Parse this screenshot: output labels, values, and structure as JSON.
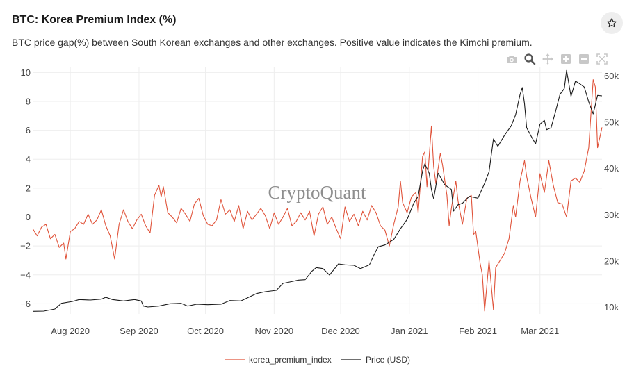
{
  "header": {
    "title": "BTC: Korea Premium Index (%)",
    "subtitle": "BTC price gap(%) between South Korean exchanges and other exchanges. Positive value indicates the Kimchi premium."
  },
  "icons": {
    "favorite": "star-icon",
    "toolbar": [
      "camera-icon",
      "zoom-icon",
      "pan-icon",
      "zoom-in-icon",
      "zoom-out-icon",
      "autoscale-icon"
    ]
  },
  "watermark": "CryptoQuant",
  "colors": {
    "premium": "#e0533a",
    "price": "#1a1a1a",
    "grid": "#eeeeee",
    "zero": "#333333"
  },
  "chart_data": {
    "type": "line",
    "x_range": [
      "2020-07-15",
      "2021-03-29"
    ],
    "x_ticks": [
      {
        "date": "2020-08-01",
        "label": "Aug 2020"
      },
      {
        "date": "2020-09-01",
        "label": "Sep 2020"
      },
      {
        "date": "2020-10-01",
        "label": "Oct 2020"
      },
      {
        "date": "2020-11-01",
        "label": "Nov 2020"
      },
      {
        "date": "2020-12-01",
        "label": "Dec 2020"
      },
      {
        "date": "2021-01-01",
        "label": "Jan 2021"
      },
      {
        "date": "2021-02-01",
        "label": "Feb 2021"
      },
      {
        "date": "2021-03-01",
        "label": "Mar 2021"
      }
    ],
    "y_left": {
      "range": [
        -6.7,
        10.4
      ],
      "ticks": [
        10,
        8,
        6,
        4,
        2,
        0,
        -2,
        -4,
        -6
      ]
    },
    "y_right": {
      "range": [
        8600,
        62000
      ],
      "ticks": [
        {
          "value": 60000,
          "label": "60k"
        },
        {
          "value": 50000,
          "label": "50k"
        },
        {
          "value": 40000,
          "label": "40k"
        },
        {
          "value": 30000,
          "label": "30k"
        },
        {
          "value": 20000,
          "label": "20k"
        },
        {
          "value": 10000,
          "label": "10k"
        }
      ]
    },
    "legend": "bottom-center",
    "grid": true,
    "series": [
      {
        "name": "korea_premium_index",
        "axis": "left",
        "points": [
          [
            "2020-07-15",
            -0.8
          ],
          [
            "2020-07-17",
            -1.3
          ],
          [
            "2020-07-19",
            -0.7
          ],
          [
            "2020-07-21",
            -0.5
          ],
          [
            "2020-07-23",
            -1.5
          ],
          [
            "2020-07-25",
            -1.2
          ],
          [
            "2020-07-27",
            -2.1
          ],
          [
            "2020-07-29",
            -1.8
          ],
          [
            "2020-07-30",
            -2.9
          ],
          [
            "2020-08-01",
            -1.0
          ],
          [
            "2020-08-03",
            -0.8
          ],
          [
            "2020-08-05",
            -0.3
          ],
          [
            "2020-08-07",
            -0.5
          ],
          [
            "2020-08-09",
            0.2
          ],
          [
            "2020-08-11",
            -0.5
          ],
          [
            "2020-08-13",
            -0.2
          ],
          [
            "2020-08-15",
            0.5
          ],
          [
            "2020-08-17",
            -0.6
          ],
          [
            "2020-08-19",
            -1.3
          ],
          [
            "2020-08-21",
            -2.9
          ],
          [
            "2020-08-23",
            -0.5
          ],
          [
            "2020-08-25",
            0.5
          ],
          [
            "2020-08-27",
            -0.3
          ],
          [
            "2020-08-29",
            -0.8
          ],
          [
            "2020-08-31",
            -0.2
          ],
          [
            "2020-09-02",
            0.2
          ],
          [
            "2020-09-04",
            -0.6
          ],
          [
            "2020-09-06",
            -1.1
          ],
          [
            "2020-09-08",
            1.5
          ],
          [
            "2020-09-10",
            2.2
          ],
          [
            "2020-09-11",
            1.4
          ],
          [
            "2020-09-12",
            2.1
          ],
          [
            "2020-09-14",
            0.3
          ],
          [
            "2020-09-16",
            0.0
          ],
          [
            "2020-09-18",
            -0.4
          ],
          [
            "2020-09-20",
            0.6
          ],
          [
            "2020-09-22",
            0.2
          ],
          [
            "2020-09-24",
            -0.3
          ],
          [
            "2020-09-26",
            0.9
          ],
          [
            "2020-09-28",
            1.3
          ],
          [
            "2020-09-30",
            0.1
          ],
          [
            "2020-10-02",
            -0.5
          ],
          [
            "2020-10-04",
            -0.6
          ],
          [
            "2020-10-06",
            -0.2
          ],
          [
            "2020-10-08",
            1.2
          ],
          [
            "2020-10-10",
            0.2
          ],
          [
            "2020-10-12",
            0.5
          ],
          [
            "2020-10-14",
            -0.3
          ],
          [
            "2020-10-16",
            0.8
          ],
          [
            "2020-10-18",
            -0.8
          ],
          [
            "2020-10-20",
            0.4
          ],
          [
            "2020-10-22",
            -0.2
          ],
          [
            "2020-10-24",
            0.2
          ],
          [
            "2020-10-26",
            0.6
          ],
          [
            "2020-10-28",
            0.1
          ],
          [
            "2020-10-30",
            -0.8
          ],
          [
            "2020-11-01",
            0.3
          ],
          [
            "2020-11-03",
            -0.5
          ],
          [
            "2020-11-05",
            0.0
          ],
          [
            "2020-11-07",
            0.6
          ],
          [
            "2020-11-09",
            -0.6
          ],
          [
            "2020-11-11",
            -0.3
          ],
          [
            "2020-11-13",
            0.3
          ],
          [
            "2020-11-15",
            -0.2
          ],
          [
            "2020-11-17",
            0.4
          ],
          [
            "2020-11-19",
            -1.3
          ],
          [
            "2020-11-21",
            0.2
          ],
          [
            "2020-11-23",
            0.7
          ],
          [
            "2020-11-25",
            -0.5
          ],
          [
            "2020-11-27",
            0.0
          ],
          [
            "2020-11-29",
            -0.8
          ],
          [
            "2020-12-01",
            -1.5
          ],
          [
            "2020-12-03",
            0.7
          ],
          [
            "2020-12-05",
            -0.3
          ],
          [
            "2020-12-07",
            0.2
          ],
          [
            "2020-12-09",
            -0.6
          ],
          [
            "2020-12-11",
            0.4
          ],
          [
            "2020-12-13",
            -0.2
          ],
          [
            "2020-12-15",
            0.8
          ],
          [
            "2020-12-17",
            0.3
          ],
          [
            "2020-12-19",
            -0.6
          ],
          [
            "2020-12-21",
            -0.9
          ],
          [
            "2020-12-23",
            -2.0
          ],
          [
            "2020-12-25",
            -0.5
          ],
          [
            "2020-12-27",
            0.7
          ],
          [
            "2020-12-28",
            2.5
          ],
          [
            "2020-12-29",
            1.0
          ],
          [
            "2020-12-31",
            0.3
          ],
          [
            "2021-01-02",
            1.4
          ],
          [
            "2021-01-04",
            1.7
          ],
          [
            "2021-01-05",
            0.3
          ],
          [
            "2021-01-07",
            4.2
          ],
          [
            "2021-01-08",
            4.5
          ],
          [
            "2021-01-09",
            2.1
          ],
          [
            "2021-01-11",
            6.3
          ],
          [
            "2021-01-12",
            3.5
          ],
          [
            "2021-01-13",
            2.3
          ],
          [
            "2021-01-15",
            4.4
          ],
          [
            "2021-01-16",
            3.6
          ],
          [
            "2021-01-18",
            1.5
          ],
          [
            "2021-01-19",
            -0.6
          ],
          [
            "2021-01-20",
            0.6
          ],
          [
            "2021-01-22",
            2.5
          ],
          [
            "2021-01-23",
            1.1
          ],
          [
            "2021-01-25",
            -0.5
          ],
          [
            "2021-01-27",
            1.3
          ],
          [
            "2021-01-29",
            1.5
          ],
          [
            "2021-01-30",
            -1.2
          ],
          [
            "2021-01-31",
            -1.0
          ],
          [
            "2021-02-02",
            -3.2
          ],
          [
            "2021-02-03",
            -4.0
          ],
          [
            "2021-02-04",
            -6.5
          ],
          [
            "2021-02-06",
            -3.0
          ],
          [
            "2021-02-08",
            -6.4
          ],
          [
            "2021-02-09",
            -3.5
          ],
          [
            "2021-02-11",
            -3.0
          ],
          [
            "2021-02-13",
            -2.5
          ],
          [
            "2021-02-15",
            -1.5
          ],
          [
            "2021-02-17",
            0.8
          ],
          [
            "2021-02-18",
            0.0
          ],
          [
            "2021-02-20",
            2.5
          ],
          [
            "2021-02-22",
            3.9
          ],
          [
            "2021-02-23",
            2.8
          ],
          [
            "2021-02-25",
            1.3
          ],
          [
            "2021-02-27",
            0.0
          ],
          [
            "2021-03-01",
            3.0
          ],
          [
            "2021-03-03",
            1.7
          ],
          [
            "2021-03-05",
            3.9
          ],
          [
            "2021-03-07",
            2.2
          ],
          [
            "2021-03-09",
            1.0
          ],
          [
            "2021-03-11",
            0.9
          ],
          [
            "2021-03-13",
            0.0
          ],
          [
            "2021-03-15",
            2.5
          ],
          [
            "2021-03-17",
            2.7
          ],
          [
            "2021-03-19",
            2.4
          ],
          [
            "2021-03-21",
            3.2
          ],
          [
            "2021-03-23",
            4.8
          ],
          [
            "2021-03-25",
            9.5
          ],
          [
            "2021-03-26",
            9.0
          ],
          [
            "2021-03-27",
            4.8
          ],
          [
            "2021-03-28",
            5.5
          ],
          [
            "2021-03-29",
            6.2
          ]
        ]
      },
      {
        "name": "Price (USD)",
        "axis": "right",
        "points": [
          [
            "2020-07-15",
            9150
          ],
          [
            "2020-07-20",
            9200
          ],
          [
            "2020-07-25",
            9650
          ],
          [
            "2020-07-28",
            10900
          ],
          [
            "2020-08-02",
            11300
          ],
          [
            "2020-08-05",
            11700
          ],
          [
            "2020-08-10",
            11600
          ],
          [
            "2020-08-15",
            11800
          ],
          [
            "2020-08-17",
            12200
          ],
          [
            "2020-08-20",
            11700
          ],
          [
            "2020-08-25",
            11400
          ],
          [
            "2020-08-30",
            11700
          ],
          [
            "2020-09-02",
            11400
          ],
          [
            "2020-09-03",
            10300
          ],
          [
            "2020-09-05",
            10100
          ],
          [
            "2020-09-10",
            10300
          ],
          [
            "2020-09-15",
            10800
          ],
          [
            "2020-09-20",
            10900
          ],
          [
            "2020-09-23",
            10300
          ],
          [
            "2020-09-27",
            10700
          ],
          [
            "2020-10-02",
            10600
          ],
          [
            "2020-10-08",
            10700
          ],
          [
            "2020-10-12",
            11500
          ],
          [
            "2020-10-17",
            11400
          ],
          [
            "2020-10-21",
            12300
          ],
          [
            "2020-10-24",
            13000
          ],
          [
            "2020-10-28",
            13400
          ],
          [
            "2020-11-02",
            13700
          ],
          [
            "2020-11-05",
            15200
          ],
          [
            "2020-11-08",
            15500
          ],
          [
            "2020-11-12",
            15900
          ],
          [
            "2020-11-15",
            16000
          ],
          [
            "2020-11-18",
            17800
          ],
          [
            "2020-11-20",
            18600
          ],
          [
            "2020-11-23",
            18400
          ],
          [
            "2020-11-26",
            17000
          ],
          [
            "2020-11-30",
            19400
          ],
          [
            "2020-12-03",
            19200
          ],
          [
            "2020-12-07",
            19100
          ],
          [
            "2020-12-10",
            18400
          ],
          [
            "2020-12-14",
            19200
          ],
          [
            "2020-12-16",
            21300
          ],
          [
            "2020-12-18",
            23100
          ],
          [
            "2020-12-21",
            23500
          ],
          [
            "2020-12-25",
            24700
          ],
          [
            "2020-12-28",
            27000
          ],
          [
            "2020-12-31",
            29000
          ],
          [
            "2021-01-03",
            32500
          ],
          [
            "2021-01-05",
            34000
          ],
          [
            "2021-01-07",
            39500
          ],
          [
            "2021-01-08",
            41000
          ],
          [
            "2021-01-10",
            39000
          ],
          [
            "2021-01-11",
            35500
          ],
          [
            "2021-01-12",
            33500
          ],
          [
            "2021-01-14",
            39000
          ],
          [
            "2021-01-17",
            36500
          ],
          [
            "2021-01-20",
            35500
          ],
          [
            "2021-01-21",
            30800
          ],
          [
            "2021-01-23",
            32200
          ],
          [
            "2021-01-25",
            32500
          ],
          [
            "2021-01-28",
            34000
          ],
          [
            "2021-01-30",
            33800
          ],
          [
            "2021-02-01",
            33600
          ],
          [
            "2021-02-04",
            36800
          ],
          [
            "2021-02-06",
            39300
          ],
          [
            "2021-02-08",
            46400
          ],
          [
            "2021-02-10",
            44800
          ],
          [
            "2021-02-13",
            47200
          ],
          [
            "2021-02-16",
            49200
          ],
          [
            "2021-02-18",
            51600
          ],
          [
            "2021-02-20",
            56000
          ],
          [
            "2021-02-21",
            57500
          ],
          [
            "2021-02-22",
            54000
          ],
          [
            "2021-02-23",
            48800
          ],
          [
            "2021-02-25",
            47000
          ],
          [
            "2021-02-27",
            45300
          ],
          [
            "2021-03-01",
            49600
          ],
          [
            "2021-03-03",
            50400
          ],
          [
            "2021-03-04",
            48400
          ],
          [
            "2021-03-06",
            48800
          ],
          [
            "2021-03-08",
            52300
          ],
          [
            "2021-03-10",
            56000
          ],
          [
            "2021-03-12",
            57300
          ],
          [
            "2021-03-13",
            61200
          ],
          [
            "2021-03-15",
            55600
          ],
          [
            "2021-03-17",
            58900
          ],
          [
            "2021-03-19",
            58300
          ],
          [
            "2021-03-21",
            57600
          ],
          [
            "2021-03-23",
            54400
          ],
          [
            "2021-03-25",
            51800
          ],
          [
            "2021-03-27",
            55800
          ],
          [
            "2021-03-29",
            55700
          ]
        ]
      }
    ]
  }
}
